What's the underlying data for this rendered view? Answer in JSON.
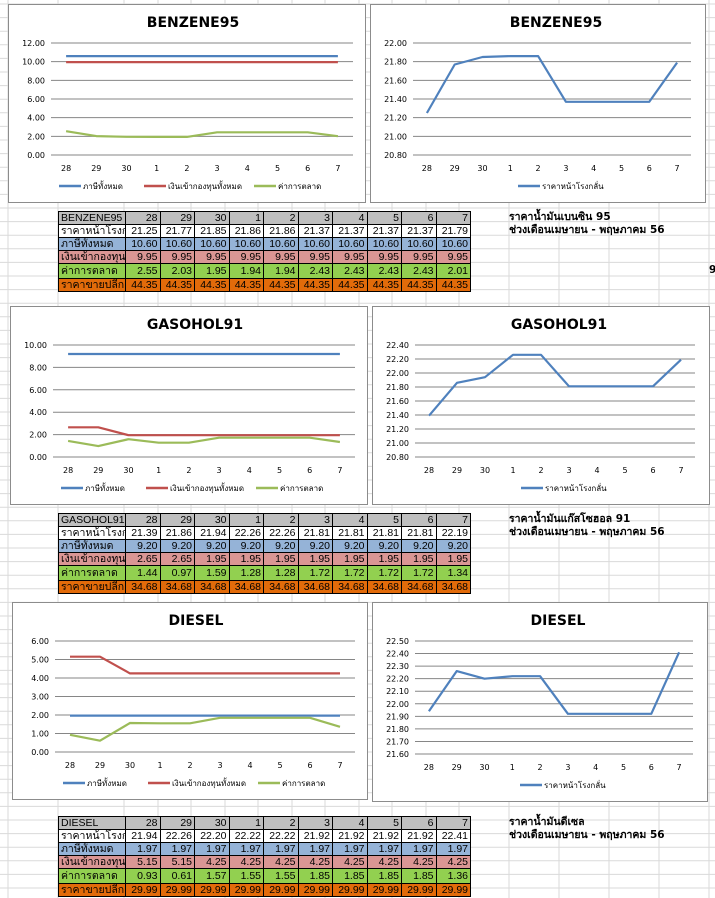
{
  "sections": [
    {
      "id": "benzene95",
      "left_chart": {
        "title": "BENZENE95"
      },
      "right_chart": {
        "title": "BENZENE95"
      },
      "table": {
        "header": [
          "BENZENE95",
          "28",
          "29",
          "30",
          "1",
          "2",
          "3",
          "4",
          "5",
          "6",
          "7"
        ],
        "rows": [
          {
            "label": "ราคาหน้าโรงก",
            "values": [
              "21.25",
              "21.77",
              "21.85",
              "21.86",
              "21.86",
              "21.37",
              "21.37",
              "21.37",
              "21.37",
              "21.79"
            ]
          },
          {
            "label": "ภาษีทั้งหมด",
            "values": [
              "10.60",
              "10.60",
              "10.60",
              "10.60",
              "10.60",
              "10.60",
              "10.60",
              "10.60",
              "10.60",
              "10.60"
            ]
          },
          {
            "label": "เงินเข้ากองทุน",
            "values": [
              "9.95",
              "9.95",
              "9.95",
              "9.95",
              "9.95",
              "9.95",
              "9.95",
              "9.95",
              "9.95",
              "9.95"
            ]
          },
          {
            "label": "ค่าการตลาด",
            "values": [
              "2.55",
              "2.03",
              "1.95",
              "1.94",
              "1.94",
              "2.43",
              "2.43",
              "2.43",
              "2.43",
              "2.01"
            ]
          },
          {
            "label": "ราคาขายปลีก",
            "values": [
              "44.35",
              "44.35",
              "44.35",
              "44.35",
              "44.35",
              "44.35",
              "44.35",
              "44.35",
              "44.35",
              "44.35"
            ]
          }
        ]
      },
      "note": {
        "line1": "ราคาน้ำมันเบนซิน 95",
        "line2": "ช่วงเดือนเมษายน - พฤษภาคม 56"
      }
    },
    {
      "id": "gasohol91",
      "left_chart": {
        "title": "GASOHOL91"
      },
      "right_chart": {
        "title": "GASOHOL91"
      },
      "table": {
        "header": [
          "GASOHOL91",
          "28",
          "29",
          "30",
          "1",
          "2",
          "3",
          "4",
          "5",
          "6",
          "7"
        ],
        "rows": [
          {
            "label": "ราคาหน้าโรงก",
            "values": [
              "21.39",
              "21.86",
              "21.94",
              "22.26",
              "22.26",
              "21.81",
              "21.81",
              "21.81",
              "21.81",
              "22.19"
            ]
          },
          {
            "label": "ภาษีทั้งหมด",
            "values": [
              "9.20",
              "9.20",
              "9.20",
              "9.20",
              "9.20",
              "9.20",
              "9.20",
              "9.20",
              "9.20",
              "9.20"
            ]
          },
          {
            "label": "เงินเข้ากองทุน",
            "values": [
              "2.65",
              "2.65",
              "1.95",
              "1.95",
              "1.95",
              "1.95",
              "1.95",
              "1.95",
              "1.95",
              "1.95"
            ]
          },
          {
            "label": "ค่าการตลาด",
            "values": [
              "1.44",
              "0.97",
              "1.59",
              "1.28",
              "1.28",
              "1.72",
              "1.72",
              "1.72",
              "1.72",
              "1.34"
            ]
          },
          {
            "label": "ราคาขายปลีก",
            "values": [
              "34.68",
              "34.68",
              "34.68",
              "34.68",
              "34.68",
              "34.68",
              "34.68",
              "34.68",
              "34.68",
              "34.68"
            ]
          }
        ]
      },
      "note": {
        "line1": "ราคาน้ำมันแก๊สโซฮอล 91",
        "line2": "ช่วงเดือนเมษายน - พฤษภาคม 56"
      }
    },
    {
      "id": "diesel",
      "left_chart": {
        "title": "DIESEL"
      },
      "right_chart": {
        "title": "DIESEL"
      },
      "table": {
        "header": [
          "DIESEL",
          "28",
          "29",
          "30",
          "1",
          "2",
          "3",
          "4",
          "5",
          "6",
          "7"
        ],
        "rows": [
          {
            "label": "ราคาหน้าโรงก",
            "values": [
              "21.94",
              "22.26",
              "22.20",
              "22.22",
              "22.22",
              "21.92",
              "21.92",
              "21.92",
              "21.92",
              "22.41"
            ]
          },
          {
            "label": "ภาษีทั้งหมด",
            "values": [
              "1.97",
              "1.97",
              "1.97",
              "1.97",
              "1.97",
              "1.97",
              "1.97",
              "1.97",
              "1.97",
              "1.97"
            ]
          },
          {
            "label": "เงินเข้ากองทุน",
            "values": [
              "5.15",
              "5.15",
              "4.25",
              "4.25",
              "4.25",
              "4.25",
              "4.25",
              "4.25",
              "4.25",
              "4.25"
            ]
          },
          {
            "label": "ค่าการตลาด",
            "values": [
              "0.93",
              "0.61",
              "1.57",
              "1.55",
              "1.55",
              "1.85",
              "1.85",
              "1.85",
              "1.85",
              "1.36"
            ]
          },
          {
            "label": "ราคาขายปลีก",
            "values": [
              "29.99",
              "29.99",
              "29.99",
              "29.99",
              "29.99",
              "29.99",
              "29.99",
              "29.99",
              "29.99",
              "29.99"
            ]
          }
        ]
      },
      "note": {
        "line1": "ราคาน้ำมันดีเซล",
        "line2": "ช่วงเดือนเมษายน - พฤษภาคม 56"
      }
    }
  ],
  "stray_glyph": "9",
  "colors": {
    "tax": "#4f81bd",
    "fund": "#c0504d",
    "margin": "#9bbb59",
    "refinery": "#4f81bd",
    "header_row": "#bfbfbf",
    "tax_row": "#95b3d7",
    "fund_row": "#da9694",
    "margin_row": "#92d050",
    "retail_row": "#e26b0a"
  },
  "chart_data": [
    {
      "type": "line",
      "title": "BENZENE95",
      "categories": [
        "28",
        "29",
        "30",
        "1",
        "2",
        "3",
        "4",
        "5",
        "6",
        "7"
      ],
      "ylim": [
        0,
        12
      ],
      "yticks": [
        "0.00",
        "2.00",
        "4.00",
        "6.00",
        "8.00",
        "10.00",
        "12.00"
      ],
      "ytick_values": [
        0,
        2,
        4,
        6,
        8,
        10,
        12
      ],
      "grid": true,
      "legend": "bottom",
      "series": [
        {
          "name": "ภาษีทั้งหมด",
          "color": "#4f81bd",
          "values": [
            10.6,
            10.6,
            10.6,
            10.6,
            10.6,
            10.6,
            10.6,
            10.6,
            10.6,
            10.6
          ]
        },
        {
          "name": "เงินเข้ากองทุนทั้งหมด",
          "color": "#c0504d",
          "values": [
            9.95,
            9.95,
            9.95,
            9.95,
            9.95,
            9.95,
            9.95,
            9.95,
            9.95,
            9.95
          ]
        },
        {
          "name": "ค่าการตลาด",
          "color": "#9bbb59",
          "values": [
            2.55,
            2.03,
            1.95,
            1.94,
            1.94,
            2.43,
            2.43,
            2.43,
            2.43,
            2.01
          ]
        }
      ]
    },
    {
      "type": "line",
      "title": "BENZENE95",
      "categories": [
        "28",
        "29",
        "30",
        "1",
        "2",
        "3",
        "4",
        "5",
        "6",
        "7"
      ],
      "ylim": [
        20.8,
        22.0
      ],
      "yticks": [
        "20.80",
        "21.00",
        "21.20",
        "21.40",
        "21.60",
        "21.80",
        "22.00"
      ],
      "ytick_values": [
        20.8,
        21.0,
        21.2,
        21.4,
        21.6,
        21.8,
        22.0
      ],
      "grid": true,
      "legend": "bottom",
      "series": [
        {
          "name": "ราคาหน้าโรงกลั่น",
          "color": "#4f81bd",
          "values": [
            21.25,
            21.77,
            21.85,
            21.86,
            21.86,
            21.37,
            21.37,
            21.37,
            21.37,
            21.79
          ]
        }
      ]
    },
    {
      "type": "line",
      "title": "GASOHOL91",
      "categories": [
        "28",
        "29",
        "30",
        "1",
        "2",
        "3",
        "4",
        "5",
        "6",
        "7"
      ],
      "ylim": [
        0,
        10
      ],
      "yticks": [
        "0.00",
        "2.00",
        "4.00",
        "6.00",
        "8.00",
        "10.00"
      ],
      "ytick_values": [
        0,
        2,
        4,
        6,
        8,
        10
      ],
      "grid": true,
      "legend": "bottom",
      "series": [
        {
          "name": "ภาษีทั้งหมด",
          "color": "#4f81bd",
          "values": [
            9.2,
            9.2,
            9.2,
            9.2,
            9.2,
            9.2,
            9.2,
            9.2,
            9.2,
            9.2
          ]
        },
        {
          "name": "เงินเข้ากองทุนทั้งหมด",
          "color": "#c0504d",
          "values": [
            2.65,
            2.65,
            1.95,
            1.95,
            1.95,
            1.95,
            1.95,
            1.95,
            1.95,
            1.95
          ]
        },
        {
          "name": "ค่าการตลาด",
          "color": "#9bbb59",
          "values": [
            1.44,
            0.97,
            1.59,
            1.28,
            1.28,
            1.72,
            1.72,
            1.72,
            1.72,
            1.34
          ]
        }
      ]
    },
    {
      "type": "line",
      "title": "GASOHOL91",
      "categories": [
        "28",
        "29",
        "30",
        "1",
        "2",
        "3",
        "4",
        "5",
        "6",
        "7"
      ],
      "ylim": [
        20.8,
        22.4
      ],
      "yticks": [
        "20.80",
        "21.00",
        "21.20",
        "21.40",
        "21.60",
        "21.80",
        "22.00",
        "22.20",
        "22.40"
      ],
      "ytick_values": [
        20.8,
        21.0,
        21.2,
        21.4,
        21.6,
        21.8,
        22.0,
        22.2,
        22.4
      ],
      "grid": true,
      "legend": "bottom",
      "series": [
        {
          "name": "ราคาหน้าโรงกลั่น",
          "color": "#4f81bd",
          "values": [
            21.39,
            21.86,
            21.94,
            22.26,
            22.26,
            21.81,
            21.81,
            21.81,
            21.81,
            22.19
          ]
        }
      ]
    },
    {
      "type": "line",
      "title": "DIESEL",
      "categories": [
        "28",
        "29",
        "30",
        "1",
        "2",
        "3",
        "4",
        "5",
        "6",
        "7"
      ],
      "ylim": [
        0,
        6
      ],
      "yticks": [
        "0.00",
        "1.00",
        "2.00",
        "3.00",
        "4.00",
        "5.00",
        "6.00"
      ],
      "ytick_values": [
        0,
        1,
        2,
        3,
        4,
        5,
        6
      ],
      "grid": true,
      "legend": "bottom",
      "series": [
        {
          "name": "ภาษีทั้งหมด",
          "color": "#4f81bd",
          "values": [
            1.97,
            1.97,
            1.97,
            1.97,
            1.97,
            1.97,
            1.97,
            1.97,
            1.97,
            1.97
          ]
        },
        {
          "name": "เงินเข้ากองทุนทั้งหมด",
          "color": "#c0504d",
          "values": [
            5.15,
            5.15,
            4.25,
            4.25,
            4.25,
            4.25,
            4.25,
            4.25,
            4.25,
            4.25
          ]
        },
        {
          "name": "ค่าการตลาด",
          "color": "#9bbb59",
          "values": [
            0.93,
            0.61,
            1.57,
            1.55,
            1.55,
            1.85,
            1.85,
            1.85,
            1.85,
            1.36
          ]
        }
      ]
    },
    {
      "type": "line",
      "title": "DIESEL",
      "categories": [
        "28",
        "29",
        "30",
        "1",
        "2",
        "3",
        "4",
        "5",
        "6",
        "7"
      ],
      "ylim": [
        21.6,
        22.5
      ],
      "yticks": [
        "21.60",
        "21.70",
        "21.80",
        "21.90",
        "22.00",
        "22.10",
        "22.20",
        "22.30",
        "22.40",
        "22.50"
      ],
      "ytick_values": [
        21.6,
        21.7,
        21.8,
        21.9,
        22.0,
        22.1,
        22.2,
        22.3,
        22.4,
        22.5
      ],
      "grid": true,
      "legend": "bottom",
      "series": [
        {
          "name": "ราคาหน้าโรงกลั่น",
          "color": "#4f81bd",
          "values": [
            21.94,
            22.26,
            22.2,
            22.22,
            22.22,
            21.92,
            21.92,
            21.92,
            21.92,
            22.41
          ]
        }
      ]
    }
  ]
}
